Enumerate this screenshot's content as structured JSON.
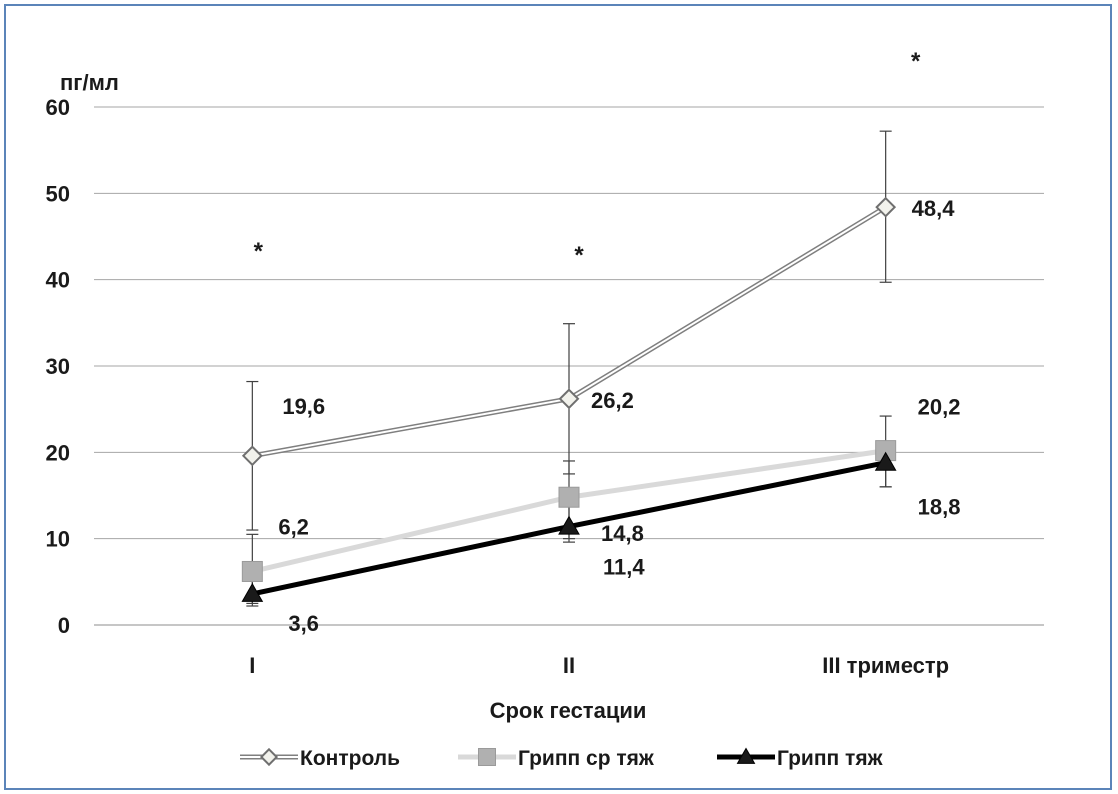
{
  "chart_data": {
    "type": "line",
    "categories": [
      "I",
      "II",
      "III триместр"
    ],
    "series": [
      {
        "name": "Контроль",
        "values": [
          19.6,
          26.2,
          48.4
        ],
        "error_upper": [
          28.2,
          34.9,
          57.2
        ],
        "error_lower": [
          11.0,
          17.5,
          39.7
        ],
        "labels": [
          "19,6",
          "26,2",
          "48,4"
        ],
        "color": "#7f7f7f",
        "marker": "diamond"
      },
      {
        "name": "Грипп ср тяж",
        "values": [
          6.2,
          14.8,
          20.2
        ],
        "error_upper": [
          10.5,
          19.0,
          24.2
        ],
        "error_lower": [
          2.5,
          10.0,
          16.0
        ],
        "labels": [
          "6,2",
          "14,8",
          "20,2"
        ],
        "color": "#d9d9d9",
        "marker": "square"
      },
      {
        "name": "Грипп тяж",
        "values": [
          3.6,
          11.4,
          18.8
        ],
        "error_upper": [
          6.0,
          13.8,
          21.0
        ],
        "error_lower": [
          2.2,
          9.6,
          16.0
        ],
        "labels": [
          "3,6",
          "11,4",
          "18,8"
        ],
        "color": "#000000",
        "marker": "triangle"
      }
    ],
    "significance": [
      {
        "category": 0,
        "value": 43.8,
        "text": "*"
      },
      {
        "category": 1,
        "value": 43.3,
        "text": "*"
      },
      {
        "category": 2,
        "value": 65.8,
        "text": "*"
      }
    ],
    "xlabel": "Срок гестации",
    "ylabel": "пг/мл",
    "ylim": [
      0,
      60
    ],
    "yticks": [
      0,
      10,
      20,
      30,
      40,
      50,
      60
    ],
    "grid": true,
    "legend_position": "bottom"
  }
}
